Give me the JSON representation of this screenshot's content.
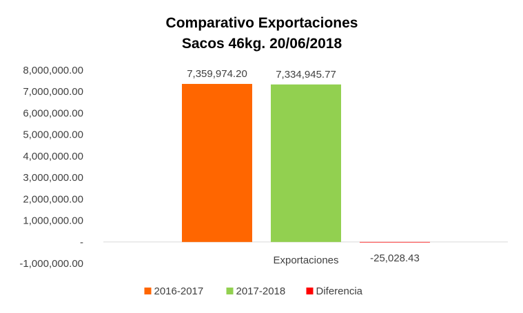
{
  "chart_data": {
    "type": "bar",
    "title_line1": "Comparativo Exportaciones",
    "title_line2": "Sacos 46kg. 20/06/2018",
    "categories": [
      "Exportaciones"
    ],
    "series": [
      {
        "name": "2016-2017",
        "values": [
          7359974.2
        ],
        "label": "7,359,974.20",
        "color": "#ff6600"
      },
      {
        "name": "2017-2018",
        "values": [
          7334945.77
        ],
        "label": "7,334,945.77",
        "color": "#92d050"
      },
      {
        "name": "Diferencia",
        "values": [
          -25028.43
        ],
        "label": "-25,028.43",
        "color": "#ff0000"
      }
    ],
    "ylim": [
      -1000000,
      8000000
    ],
    "y_ticks": [
      {
        "value": 8000000,
        "label": "8,000,000.00"
      },
      {
        "value": 7000000,
        "label": "7,000,000.00"
      },
      {
        "value": 6000000,
        "label": "6,000,000.00"
      },
      {
        "value": 5000000,
        "label": "5,000,000.00"
      },
      {
        "value": 4000000,
        "label": "4,000,000.00"
      },
      {
        "value": 3000000,
        "label": "3,000,000.00"
      },
      {
        "value": 2000000,
        "label": "2,000,000.00"
      },
      {
        "value": 1000000,
        "label": "1,000,000.00"
      },
      {
        "value": 0,
        "label": "-"
      },
      {
        "value": -1000000,
        "label": "-1,000,000.00"
      }
    ],
    "grid": false,
    "legend_position": "bottom"
  }
}
